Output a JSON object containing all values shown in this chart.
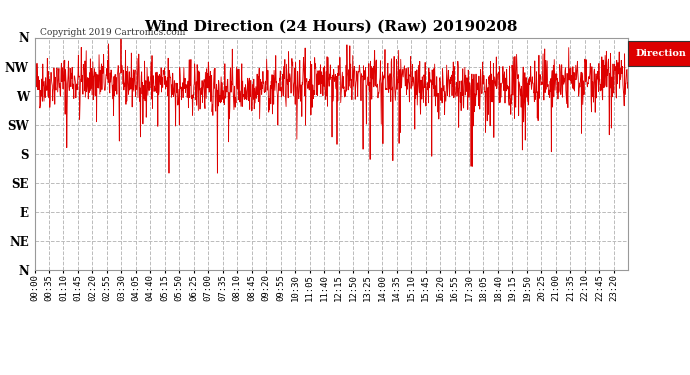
{
  "title": "Wind Direction (24 Hours) (Raw) 20190208",
  "copyright": "Copyright 2019 Cartronics.com",
  "legend_label": "Direction",
  "legend_bg": "#dd0000",
  "legend_text_color": "#ffffff",
  "plot_bg": "#ffffff",
  "fig_bg": "#ffffff",
  "line_color": "#dd0000",
  "ytick_labels": [
    "N",
    "NW",
    "W",
    "SW",
    "S",
    "SE",
    "E",
    "NE",
    "N"
  ],
  "ytick_values": [
    360,
    315,
    270,
    225,
    180,
    135,
    90,
    45,
    0
  ],
  "ylim": [
    0,
    360
  ],
  "grid_color": "#bbbbbb",
  "grid_style": "--",
  "title_fontsize": 11,
  "tick_fontsize": 6.5,
  "x_tick_interval_minutes": 35,
  "total_minutes": 1435,
  "seed": 42
}
